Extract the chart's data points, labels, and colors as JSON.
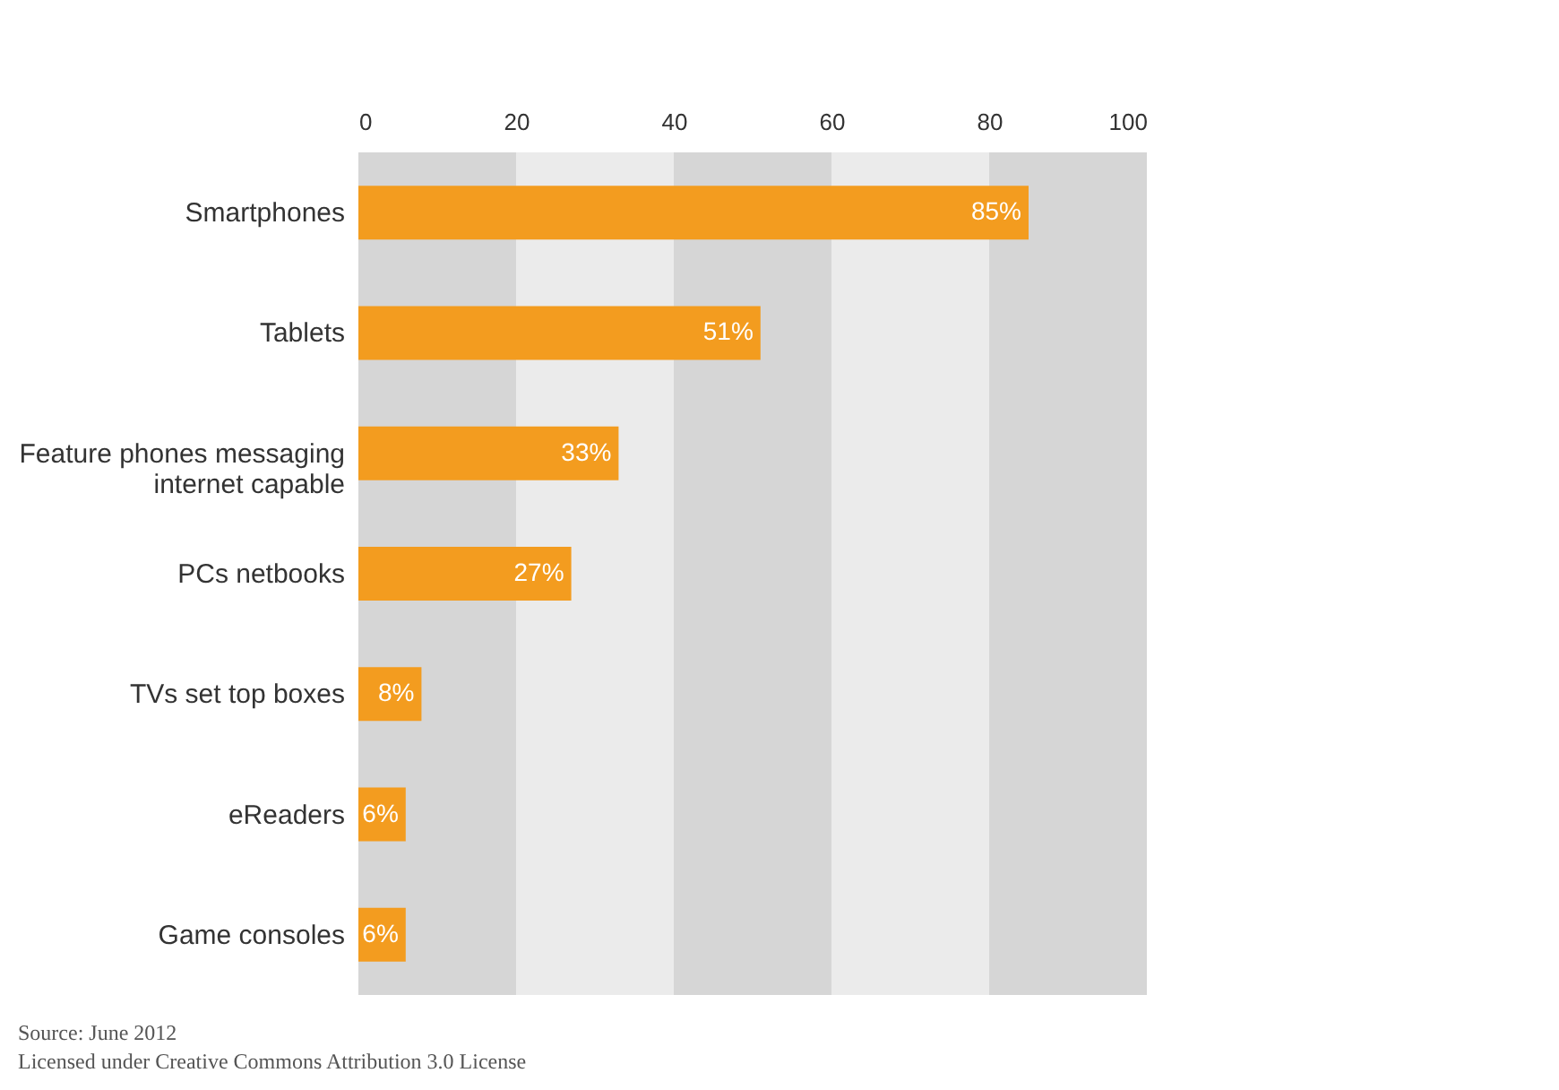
{
  "chart_data": {
    "type": "bar",
    "orientation": "horizontal",
    "categories": [
      "Smartphones",
      "Tablets",
      "Feature phones messaging internet capable",
      "PCs netbooks",
      "TVs set top boxes",
      "eReaders",
      "Game consoles"
    ],
    "values": [
      85,
      51,
      33,
      27,
      8,
      6,
      6
    ],
    "value_labels": [
      "85%",
      "51%",
      "33%",
      "27%",
      "8%",
      "6%",
      "6%"
    ],
    "color": "#f39c1f",
    "xlim": [
      0,
      100
    ],
    "xticks": [
      0,
      20,
      40,
      60,
      80,
      100
    ],
    "grid": false,
    "bands": [
      {
        "axis": "x",
        "from": 0,
        "to": 20,
        "color": "#d6d6d6"
      },
      {
        "axis": "x",
        "from": 20,
        "to": 40,
        "color": "#ebebeb"
      },
      {
        "axis": "x",
        "from": 40,
        "to": 60,
        "color": "#d6d6d6"
      },
      {
        "axis": "x",
        "from": 60,
        "to": 80,
        "color": "#ebebeb"
      },
      {
        "axis": "x",
        "from": 80,
        "to": 100,
        "color": "#d6d6d6"
      }
    ],
    "annotations": [
      "Source: June 2012",
      "Licensed under Creative Commons Attribution 3.0 License"
    ]
  }
}
